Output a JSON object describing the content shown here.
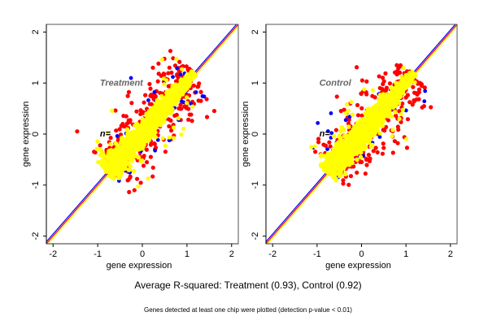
{
  "chart_data": [
    {
      "type": "scatter",
      "panel": "left",
      "annotation": "Treatment",
      "count_label": "n=",
      "xlabel": "gene expression",
      "ylabel": "gene expression",
      "xlim": [
        -2.15,
        2.15
      ],
      "ylim": [
        -2.15,
        2.15
      ],
      "xticks": [
        -2,
        -1,
        0,
        1,
        2
      ],
      "yticks": [
        -2,
        -1,
        0,
        1,
        2
      ],
      "reference_lines": [
        {
          "color": "#0000ff",
          "slope": 1,
          "intercept": 0.04
        },
        {
          "color": "#ff0000",
          "slope": 1,
          "intercept": 0.0
        },
        {
          "color": "#ffff00",
          "slope": 1,
          "intercept": -0.04
        }
      ],
      "point_cloud": {
        "x_range": [
          -1.0,
          1.2
        ],
        "y_range": [
          -1.15,
          1.2
        ],
        "colors": {
          "bulk": "#ffff00",
          "outlier_high": "#ff0000",
          "outlier_mid": "#0000ff"
        }
      }
    },
    {
      "type": "scatter",
      "panel": "right",
      "annotation": "Control",
      "count_label": "n=",
      "xlabel": "gene expression",
      "ylabel": "gene expression",
      "xlim": [
        -2.15,
        2.15
      ],
      "ylim": [
        -2.15,
        2.15
      ],
      "xticks": [
        -2,
        -1,
        0,
        1,
        2
      ],
      "yticks": [
        -2,
        -1,
        0,
        1,
        2
      ],
      "reference_lines": [
        {
          "color": "#0000ff",
          "slope": 1,
          "intercept": 0.04
        },
        {
          "color": "#ff0000",
          "slope": 1,
          "intercept": 0.0
        },
        {
          "color": "#ffff00",
          "slope": 1,
          "intercept": -0.04
        }
      ],
      "point_cloud": {
        "x_range": [
          -0.95,
          1.2
        ],
        "y_range": [
          -1.15,
          1.2
        ],
        "colors": {
          "bulk": "#ffff00",
          "outlier_high": "#ff0000",
          "outlier_mid": "#0000ff"
        }
      }
    }
  ],
  "figure": {
    "title": "Average R-squared: Treatment (0.93), Control (0.92)",
    "subtitle": "Genes detected at least one chip were plotted (detection p-value < 0.01)"
  }
}
